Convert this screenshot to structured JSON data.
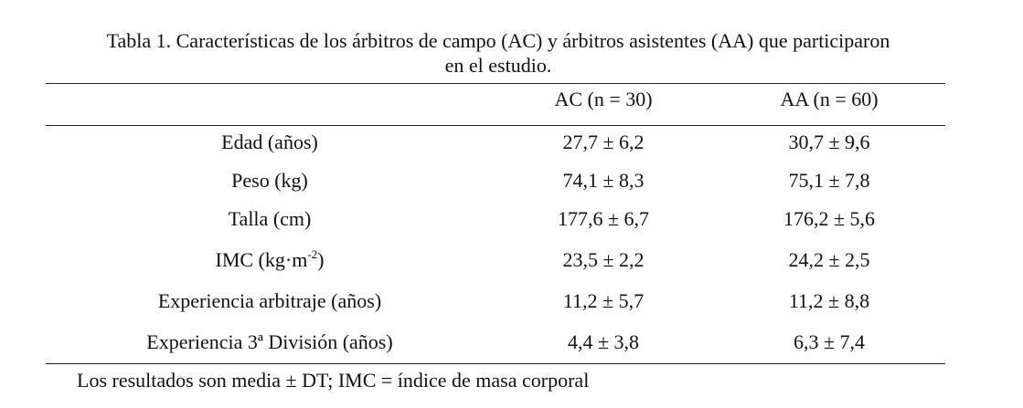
{
  "caption": {
    "line1": "Tabla 1. Características de los árbitros de campo (AC) y árbitros asistentes (AA) que participaron",
    "line2": "en el estudio."
  },
  "table": {
    "columns": [
      "",
      "AC (n = 30)",
      "AA (n = 60)"
    ],
    "rows": [
      {
        "label": "Edad (años)",
        "ac": "27,7 ± 6,2",
        "aa": "30,7 ± 9,6"
      },
      {
        "label": "Peso (kg)",
        "ac": "74,1 ± 8,3",
        "aa": "75,1 ± 7,8"
      },
      {
        "label": "Talla (cm)",
        "ac": "177,6 ± 6,7",
        "aa": "176,2 ± 5,6"
      },
      {
        "label_pre": "IMC (kg·m",
        "label_sup": "-2",
        "label_post": ")",
        "ac": "23,5 ± 2,2",
        "aa": "24,2 ± 2,5"
      },
      {
        "label": "Experiencia arbitraje (años)",
        "ac": "11,2 ± 5,7",
        "aa": "11,2 ± 8,8"
      },
      {
        "label": "Experiencia 3ª División (años)",
        "ac": "4,4 ± 3,8",
        "aa": "6,3 ± 7,4"
      }
    ]
  },
  "footnote": "Los resultados son media ± DT;  IMC = índice de masa corporal"
}
